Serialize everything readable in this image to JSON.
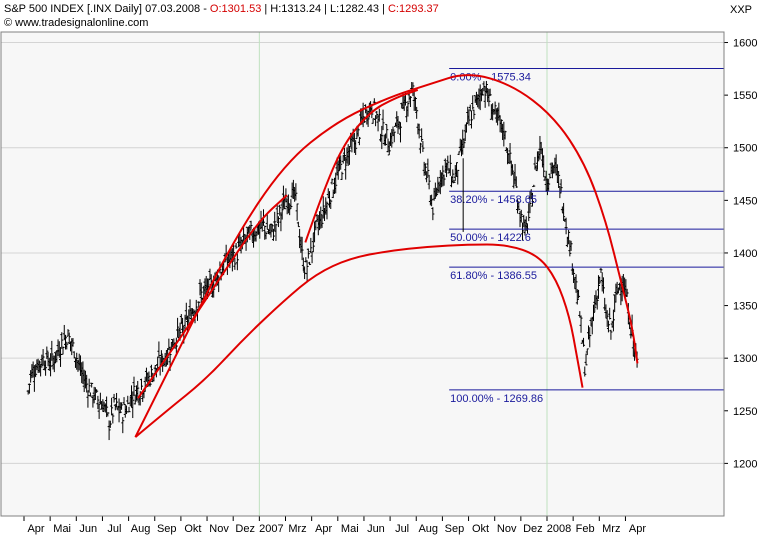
{
  "header": {
    "symbol": "S&P 500 INDEX",
    "ticker": "[.INX",
    "interval": "Daily]",
    "date": "07.03.2008",
    "open_label": "O:",
    "open": "1301.53",
    "high_label": "H:",
    "high": "1313.24",
    "low_label": "L:",
    "low": "1282.43",
    "close_label": "C:",
    "close": "1293.37",
    "copyright": "© www.tradesignalonline.com",
    "series_code": "XXP"
  },
  "colors": {
    "background": "#ffffff",
    "plot_background": "#f7f7f7",
    "grid": "#d4d4d4",
    "price": "#000000",
    "arcs": "#e00000",
    "fib_lines": "#1a1a9c",
    "ohlc_values": "#d40000"
  },
  "chart_data": {
    "type": "ohlc",
    "ylim": [
      1150,
      1610
    ],
    "y_ticks": [
      1200,
      1250,
      1300,
      1350,
      1400,
      1450,
      1500,
      1550,
      1600
    ],
    "x_ticks": [
      "Apr",
      "Mai",
      "Jun",
      "Jul",
      "Aug",
      "Sep",
      "Okt",
      "Nov",
      "Dez",
      "2007",
      "Mrz",
      "Apr",
      "Mai",
      "Jun",
      "Jul",
      "Aug",
      "Sep",
      "Okt",
      "Nov",
      "Dez",
      "2008",
      "Feb",
      "Mrz",
      "Apr"
    ],
    "x_tick_index": [
      0,
      1,
      2,
      3,
      4,
      5,
      6,
      7,
      8,
      9,
      10,
      11,
      12,
      13,
      14,
      15,
      16,
      17,
      18,
      19,
      20,
      21,
      22,
      23
    ],
    "price_path": [
      [
        -0.3,
        1268
      ],
      [
        -0.2,
        1285
      ],
      [
        0.0,
        1292
      ],
      [
        0.3,
        1300
      ],
      [
        0.6,
        1296
      ],
      [
        1.0,
        1315
      ],
      [
        1.2,
        1322
      ],
      [
        1.5,
        1306
      ],
      [
        1.7,
        1288
      ],
      [
        2.0,
        1272
      ],
      [
        2.3,
        1262
      ],
      [
        2.6,
        1255
      ],
      [
        2.8,
        1238
      ],
      [
        3.0,
        1254
      ],
      [
        3.3,
        1248
      ],
      [
        3.5,
        1255
      ],
      [
        3.7,
        1266
      ],
      [
        4.0,
        1272
      ],
      [
        4.3,
        1280
      ],
      [
        4.7,
        1294
      ],
      [
        5.0,
        1304
      ],
      [
        5.3,
        1318
      ],
      [
        5.7,
        1330
      ],
      [
        6.0,
        1345
      ],
      [
        6.3,
        1360
      ],
      [
        6.7,
        1368
      ],
      [
        7.0,
        1382
      ],
      [
        7.3,
        1392
      ],
      [
        7.7,
        1400
      ],
      [
        8.0,
        1412
      ],
      [
        8.3,
        1420
      ],
      [
        8.7,
        1426
      ],
      [
        9.0,
        1418
      ],
      [
        9.3,
        1435
      ],
      [
        9.6,
        1452
      ],
      [
        9.9,
        1454
      ],
      [
        10.0,
        1438
      ],
      [
        10.15,
        1400
      ],
      [
        10.3,
        1384
      ],
      [
        10.5,
        1398
      ],
      [
        10.7,
        1422
      ],
      [
        11.0,
        1438
      ],
      [
        11.3,
        1460
      ],
      [
        11.6,
        1478
      ],
      [
        12.0,
        1498
      ],
      [
        12.3,
        1510
      ],
      [
        12.5,
        1528
      ],
      [
        12.8,
        1540
      ],
      [
        13.0,
        1532
      ],
      [
        13.2,
        1518
      ],
      [
        13.5,
        1505
      ],
      [
        13.8,
        1520
      ],
      [
        14.0,
        1532
      ],
      [
        14.2,
        1545
      ],
      [
        14.4,
        1555
      ],
      [
        14.6,
        1530
      ],
      [
        14.8,
        1490
      ],
      [
        15.0,
        1468
      ],
      [
        15.2,
        1440
      ],
      [
        15.4,
        1470
      ],
      [
        15.7,
        1482
      ],
      [
        16.0,
        1470
      ],
      [
        16.3,
        1500
      ],
      [
        16.6,
        1530
      ],
      [
        16.9,
        1545
      ],
      [
        17.1,
        1560
      ],
      [
        17.3,
        1548
      ],
      [
        17.6,
        1528
      ],
      [
        17.9,
        1515
      ],
      [
        18.1,
        1490
      ],
      [
        18.3,
        1470
      ],
      [
        18.5,
        1440
      ],
      [
        18.7,
        1418
      ],
      [
        18.9,
        1440
      ],
      [
        19.1,
        1480
      ],
      [
        19.3,
        1505
      ],
      [
        19.5,
        1470
      ],
      [
        19.8,
        1482
      ],
      [
        20.0,
        1468
      ],
      [
        20.2,
        1440
      ],
      [
        20.4,
        1410
      ],
      [
        20.6,
        1380
      ],
      [
        20.8,
        1340
      ],
      [
        21.0,
        1290
      ],
      [
        21.2,
        1325
      ],
      [
        21.4,
        1355
      ],
      [
        21.6,
        1380
      ],
      [
        21.8,
        1340
      ],
      [
        22.0,
        1325
      ],
      [
        22.2,
        1360
      ],
      [
        22.4,
        1378
      ],
      [
        22.6,
        1355
      ],
      [
        22.8,
        1320
      ],
      [
        22.95,
        1300
      ],
      [
        23.0,
        1293
      ]
    ],
    "arcs": [
      {
        "name": "large-arc",
        "points": [
          [
            3.8,
            1225
          ],
          [
            5.5,
            1310
          ],
          [
            7.5,
            1410
          ],
          [
            9.5,
            1485
          ],
          [
            11.5,
            1525
          ],
          [
            13.5,
            1548
          ],
          [
            15.0,
            1560
          ],
          [
            16.5,
            1572
          ],
          [
            18.2,
            1560
          ],
          [
            19.8,
            1530
          ],
          [
            21.0,
            1485
          ],
          [
            21.8,
            1430
          ],
          [
            22.4,
            1370
          ],
          [
            22.8,
            1330
          ],
          [
            23.0,
            1295
          ]
        ]
      },
      {
        "name": "mid-arc",
        "points": [
          [
            10.3,
            1410
          ],
          [
            11.0,
            1460
          ],
          [
            11.8,
            1505
          ],
          [
            12.8,
            1535
          ],
          [
            13.8,
            1548
          ],
          [
            14.6,
            1555
          ]
        ]
      },
      {
        "name": "inner-arc",
        "points": [
          [
            3.8,
            1225
          ],
          [
            5.0,
            1250
          ],
          [
            6.5,
            1280
          ],
          [
            8.0,
            1320
          ],
          [
            9.5,
            1355
          ],
          [
            10.7,
            1380
          ],
          [
            12.0,
            1395
          ],
          [
            13.5,
            1402
          ],
          [
            15.0,
            1406
          ],
          [
            16.5,
            1408
          ],
          [
            18.0,
            1408
          ],
          [
            19.2,
            1398
          ],
          [
            19.9,
            1375
          ],
          [
            20.4,
            1340
          ],
          [
            20.7,
            1300
          ],
          [
            20.9,
            1272
          ]
        ]
      },
      {
        "name": "rise-arc",
        "points": [
          [
            3.9,
            1262
          ],
          [
            5.5,
            1318
          ],
          [
            7.0,
            1375
          ],
          [
            8.5,
            1430
          ],
          [
            9.6,
            1455
          ]
        ]
      }
    ],
    "fibonacci": [
      {
        "level": "0.00%",
        "value": 1575.34,
        "label": "0.00% - 1575.34"
      },
      {
        "level": "38.20%",
        "value": 1458.65,
        "label": "38.20% - 1458.65"
      },
      {
        "level": "50.00%",
        "value": 1422.6,
        "label": "50.00% - 1422.6"
      },
      {
        "level": "61.80%",
        "value": 1386.55,
        "label": "61.80% - 1386.55"
      },
      {
        "level": "100.00%",
        "value": 1269.86,
        "label": "100.00% - 1269.86"
      }
    ],
    "fib_start_index": 15.8,
    "grid": true,
    "legend": "none"
  }
}
